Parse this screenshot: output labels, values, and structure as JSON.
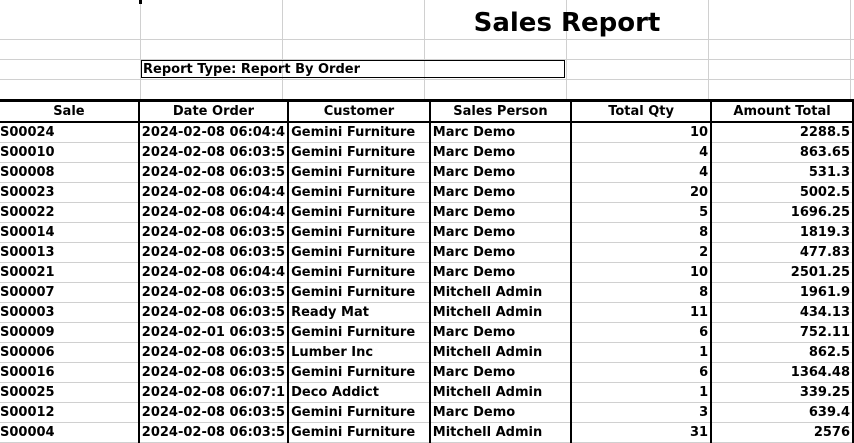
{
  "report": {
    "title": "Sales Report",
    "report_type": "Report Type: Report By Order"
  },
  "table": {
    "headers": [
      "Sale",
      "Date Order",
      "Customer",
      "Sales Person",
      "Total Qty",
      "Amount Total"
    ],
    "rows": [
      [
        "S00024",
        "2024-02-08 06:04:4",
        "Gemini Furniture",
        "Marc Demo",
        "10",
        "2288.5"
      ],
      [
        "S00010",
        "2024-02-08 06:03:5",
        "Gemini Furniture",
        "Marc Demo",
        "4",
        "863.65"
      ],
      [
        "S00008",
        "2024-02-08 06:03:5",
        "Gemini Furniture",
        "Marc Demo",
        "4",
        "531.3"
      ],
      [
        "S00023",
        "2024-02-08 06:04:4",
        "Gemini Furniture",
        "Marc Demo",
        "20",
        "5002.5"
      ],
      [
        "S00022",
        "2024-02-08 06:04:4",
        "Gemini Furniture",
        "Marc Demo",
        "5",
        "1696.25"
      ],
      [
        "S00014",
        "2024-02-08 06:03:5",
        "Gemini Furniture",
        "Marc Demo",
        "8",
        "1819.3"
      ],
      [
        "S00013",
        "2024-02-08 06:03:5",
        "Gemini Furniture",
        "Marc Demo",
        "2",
        "477.83"
      ],
      [
        "S00021",
        "2024-02-08 06:04:4",
        "Gemini Furniture",
        "Marc Demo",
        "10",
        "2501.25"
      ],
      [
        "S00007",
        "2024-02-08 06:03:5",
        "Gemini Furniture",
        "Mitchell Admin",
        "8",
        "1961.9"
      ],
      [
        "S00003",
        "2024-02-08 06:03:5",
        "Ready Mat",
        "Mitchell Admin",
        "11",
        "434.13"
      ],
      [
        "S00009",
        "2024-02-01 06:03:5",
        "Gemini Furniture",
        "Marc Demo",
        "6",
        "752.11"
      ],
      [
        "S00006",
        "2024-02-08 06:03:5",
        "Lumber Inc",
        "Mitchell Admin",
        "1",
        "862.5"
      ],
      [
        "S00016",
        "2024-02-08 06:03:5",
        "Gemini Furniture",
        "Marc Demo",
        "6",
        "1364.48"
      ],
      [
        "S00025",
        "2024-02-08 06:07:1",
        "Deco Addict",
        "Mitchell Admin",
        "1",
        "339.25"
      ],
      [
        "S00012",
        "2024-02-08 06:03:5",
        "Gemini Furniture",
        "Marc Demo",
        "3",
        "639.4"
      ],
      [
        "S00004",
        "2024-02-08 06:03:5",
        "Gemini Furniture",
        "Mitchell Admin",
        "31",
        "2576"
      ]
    ]
  }
}
